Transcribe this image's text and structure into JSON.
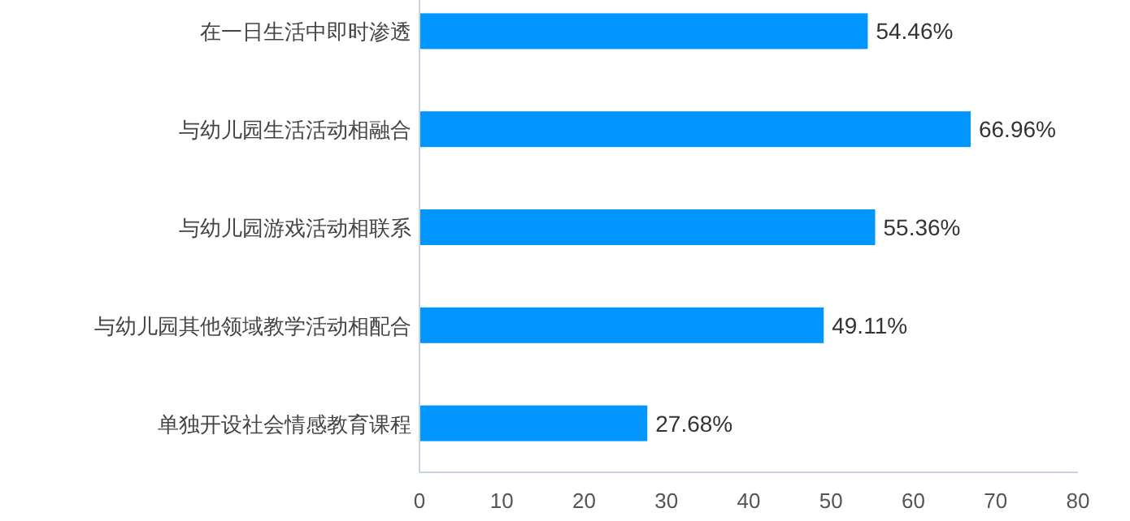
{
  "chart_data": {
    "type": "bar",
    "orientation": "horizontal",
    "categories": [
      "在一日生活中即时渗透",
      "与幼儿园生活活动相融合",
      "与幼儿园游戏活动相联系",
      "与幼儿园其他领域教学活动相配合",
      "单独开设社会情感教育课程"
    ],
    "values": [
      54.46,
      66.96,
      55.36,
      49.11,
      27.68
    ],
    "value_labels": [
      "54.46%",
      "66.96%",
      "55.36%",
      "49.11%",
      "27.68%"
    ],
    "color": "#0095ff",
    "xlim": [
      0,
      80
    ],
    "xticks": [
      0,
      10,
      20,
      30,
      40,
      50,
      60,
      70,
      80
    ]
  }
}
